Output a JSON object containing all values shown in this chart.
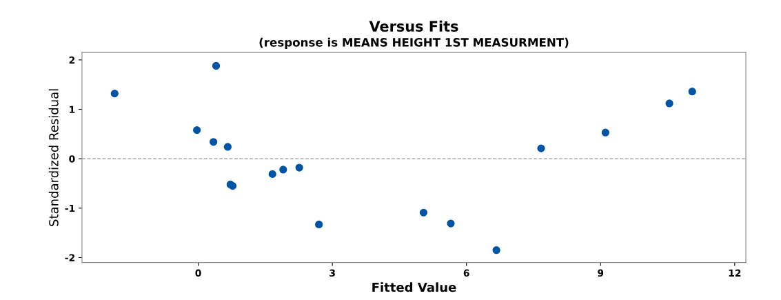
{
  "chart_data": {
    "type": "scatter",
    "title": "Versus Fits",
    "subtitle": "(response is MEANS HEIGHT 1ST MEASURMENT)",
    "xlabel": "Fitted Value",
    "ylabel": "Standardized Residual",
    "x": [
      -1.87,
      0.4,
      -0.03,
      0.34,
      0.66,
      0.72,
      0.77,
      1.66,
      1.9,
      2.26,
      2.7,
      5.04,
      5.65,
      6.67,
      7.67,
      9.11,
      10.54,
      11.05
    ],
    "values": [
      1.32,
      1.88,
      0.58,
      0.34,
      0.24,
      -0.52,
      -0.55,
      -0.31,
      -0.22,
      -0.18,
      -1.33,
      -1.09,
      -1.31,
      -1.85,
      0.21,
      0.53,
      1.12,
      1.36
    ],
    "color": "#0054a6",
    "marker": "circle",
    "grid": false,
    "legend": false,
    "xlim": [
      -2.6,
      12.25
    ],
    "ylim": [
      -2.1,
      2.15
    ],
    "xticks": [
      0,
      3,
      6,
      9,
      12
    ],
    "yticks": [
      -2,
      -1,
      0,
      1,
      2
    ],
    "ref_lines": [
      {
        "axis": "y",
        "value": 0,
        "label": null,
        "color": "#999999",
        "line_style": "dashed"
      }
    ]
  }
}
